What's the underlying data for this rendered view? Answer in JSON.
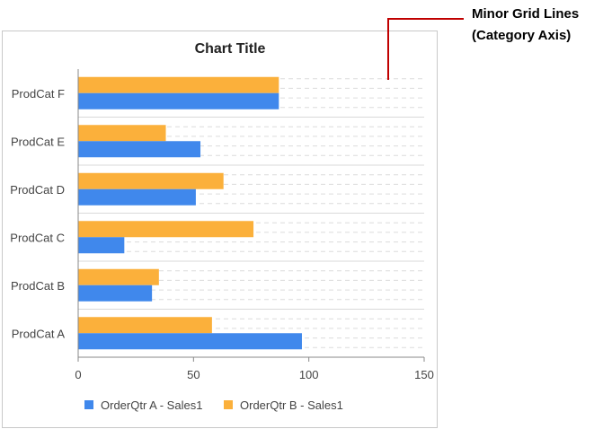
{
  "annotation": {
    "line1": "Minor Grid Lines",
    "line2": "(Category Axis)",
    "color": "#c00000"
  },
  "chart_data": {
    "type": "bar",
    "orientation": "horizontal",
    "title": "Chart Title",
    "categories": [
      "ProdCat A",
      "ProdCat B",
      "ProdCat C",
      "ProdCat D",
      "ProdCat E",
      "ProdCat F"
    ],
    "series": [
      {
        "name": "OrderQtr A - Sales1",
        "color": "#4088ec",
        "values": [
          97,
          32,
          20,
          51,
          53,
          87
        ]
      },
      {
        "name": "OrderQtr B - Sales1",
        "color": "#fbb03b",
        "values": [
          58,
          35,
          76,
          63,
          38,
          87
        ]
      }
    ],
    "xlim": [
      0,
      150
    ],
    "xticks": [
      0,
      50,
      100,
      150
    ],
    "xlabel": "",
    "ylabel": "",
    "grid": {
      "category_major": true,
      "category_minor": true,
      "minor_style": "dashed"
    },
    "legend_position": "bottom"
  }
}
